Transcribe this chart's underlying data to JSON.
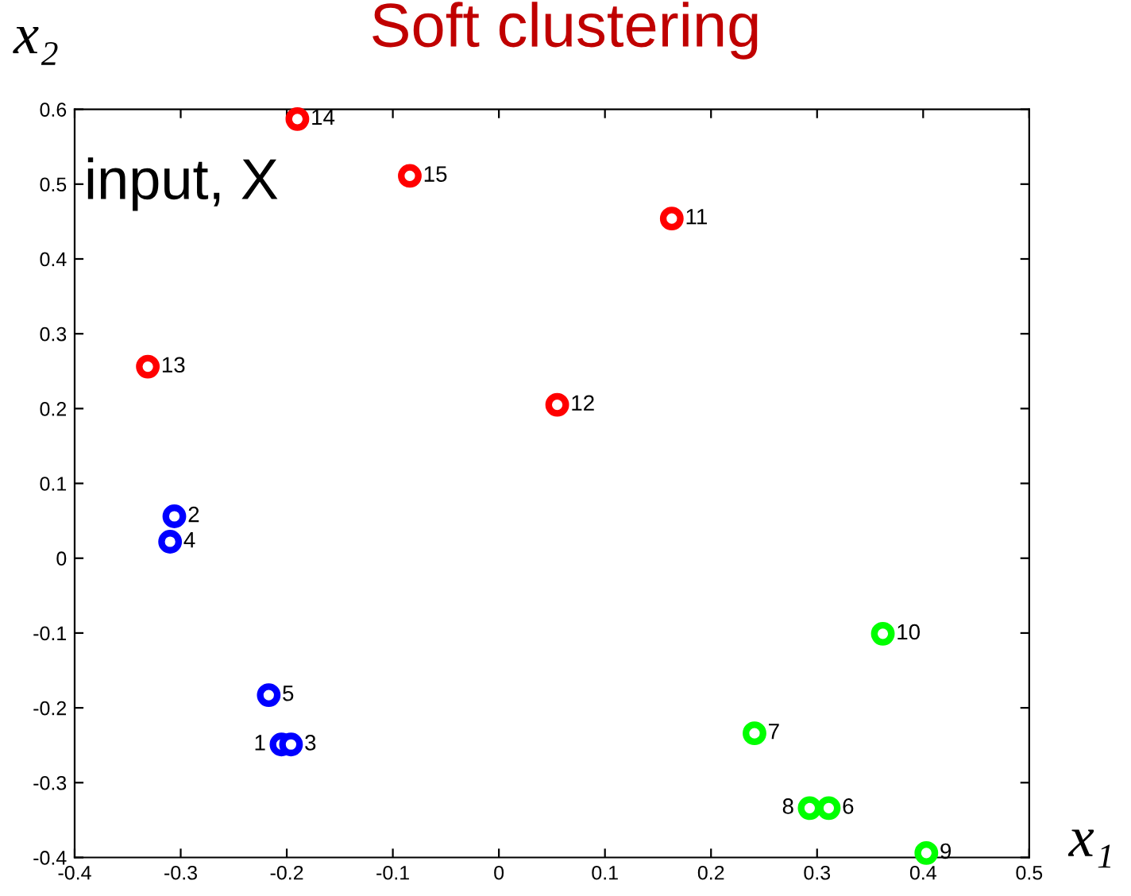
{
  "chart_data": {
    "type": "scatter",
    "title": "Soft clustering",
    "xlabel": "x₁",
    "ylabel": "x₂",
    "annotations": [
      "input, X",
      {
        "text": "1",
        "x": -0.205,
        "y": -0.249
      },
      {
        "text": "2",
        "x": -0.306,
        "y": 0.056
      },
      {
        "text": "3",
        "x": -0.196,
        "y": -0.249
      },
      {
        "text": "4",
        "x": -0.31,
        "y": 0.022
      },
      {
        "text": "5",
        "x": -0.217,
        "y": -0.183
      },
      {
        "text": "6",
        "x": 0.311,
        "y": -0.334
      },
      {
        "text": "7",
        "x": 0.241,
        "y": -0.234
      },
      {
        "text": "8",
        "x": 0.293,
        "y": -0.334
      },
      {
        "text": "9",
        "x": 0.403,
        "y": -0.394
      },
      {
        "text": "10",
        "x": 0.362,
        "y": -0.101
      },
      {
        "text": "11",
        "x": 0.163,
        "y": 0.454
      },
      {
        "text": "12",
        "x": 0.055,
        "y": 0.205
      },
      {
        "text": "13",
        "x": -0.331,
        "y": 0.256
      },
      {
        "text": "14",
        "x": -0.19,
        "y": 0.587
      },
      {
        "text": "15",
        "x": -0.084,
        "y": 0.511
      }
    ],
    "xlim": [
      -0.4,
      0.5
    ],
    "xticks": [
      -0.4,
      -0.3,
      -0.2,
      -0.1,
      0,
      0.1,
      0.2,
      0.3,
      0.4,
      0.5
    ],
    "ylim": [
      -0.4,
      0.6
    ],
    "yticks": [
      -0.4,
      -0.3,
      -0.2,
      -0.1,
      0,
      0.1,
      0.2,
      0.3,
      0.4,
      0.5,
      0.6
    ],
    "grid": false,
    "legend": false,
    "marker": "circle",
    "series": [
      {
        "color": "#0000ff",
        "x": [
          -0.205,
          -0.306,
          -0.196,
          -0.31,
          -0.217
        ],
        "values": [
          -0.249,
          0.056,
          -0.249,
          0.022,
          -0.183
        ]
      },
      {
        "color": "#00ff00",
        "x": [
          0.311,
          0.241,
          0.293,
          0.403,
          0.362
        ],
        "values": [
          -0.334,
          -0.234,
          -0.334,
          -0.394,
          -0.101
        ]
      },
      {
        "color": "#ff0000",
        "x": [
          0.163,
          0.055,
          -0.331,
          -0.19,
          -0.084
        ],
        "values": [
          0.454,
          0.205,
          0.256,
          0.587,
          0.511
        ]
      }
    ]
  }
}
